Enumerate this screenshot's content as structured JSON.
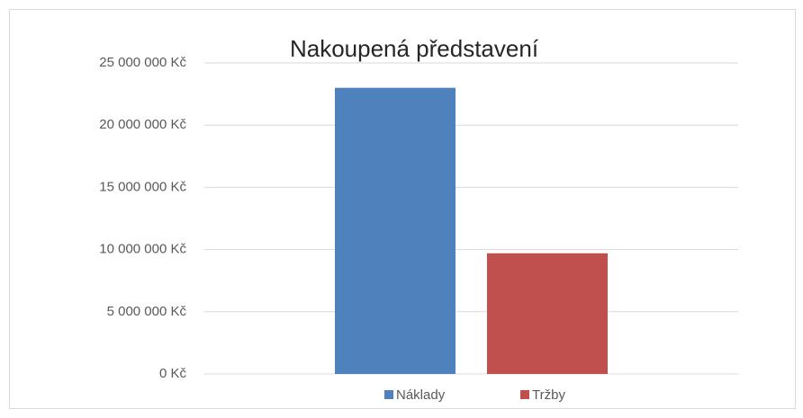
{
  "chart_data": {
    "type": "bar",
    "title": "Nakoupená představení",
    "categories": [
      null
    ],
    "series": [
      {
        "name": "Náklady",
        "color": "#4f81bd",
        "values": [
          23000000
        ]
      },
      {
        "name": "Tržby",
        "color": "#c0504d",
        "values": [
          9700000
        ]
      }
    ],
    "ylim": [
      0,
      25000000
    ],
    "yticks": [
      {
        "value": 0,
        "label": "0 Kč"
      },
      {
        "value": 5000000,
        "label": "5 000 000 Kč"
      },
      {
        "value": 10000000,
        "label": "10 000 000 Kč"
      },
      {
        "value": 15000000,
        "label": "15 000 000 Kč"
      },
      {
        "value": 20000000,
        "label": "20 000 000 Kč"
      },
      {
        "value": 25000000,
        "label": "25 000 000 Kč"
      }
    ],
    "grid": true,
    "legend": "bottom"
  }
}
